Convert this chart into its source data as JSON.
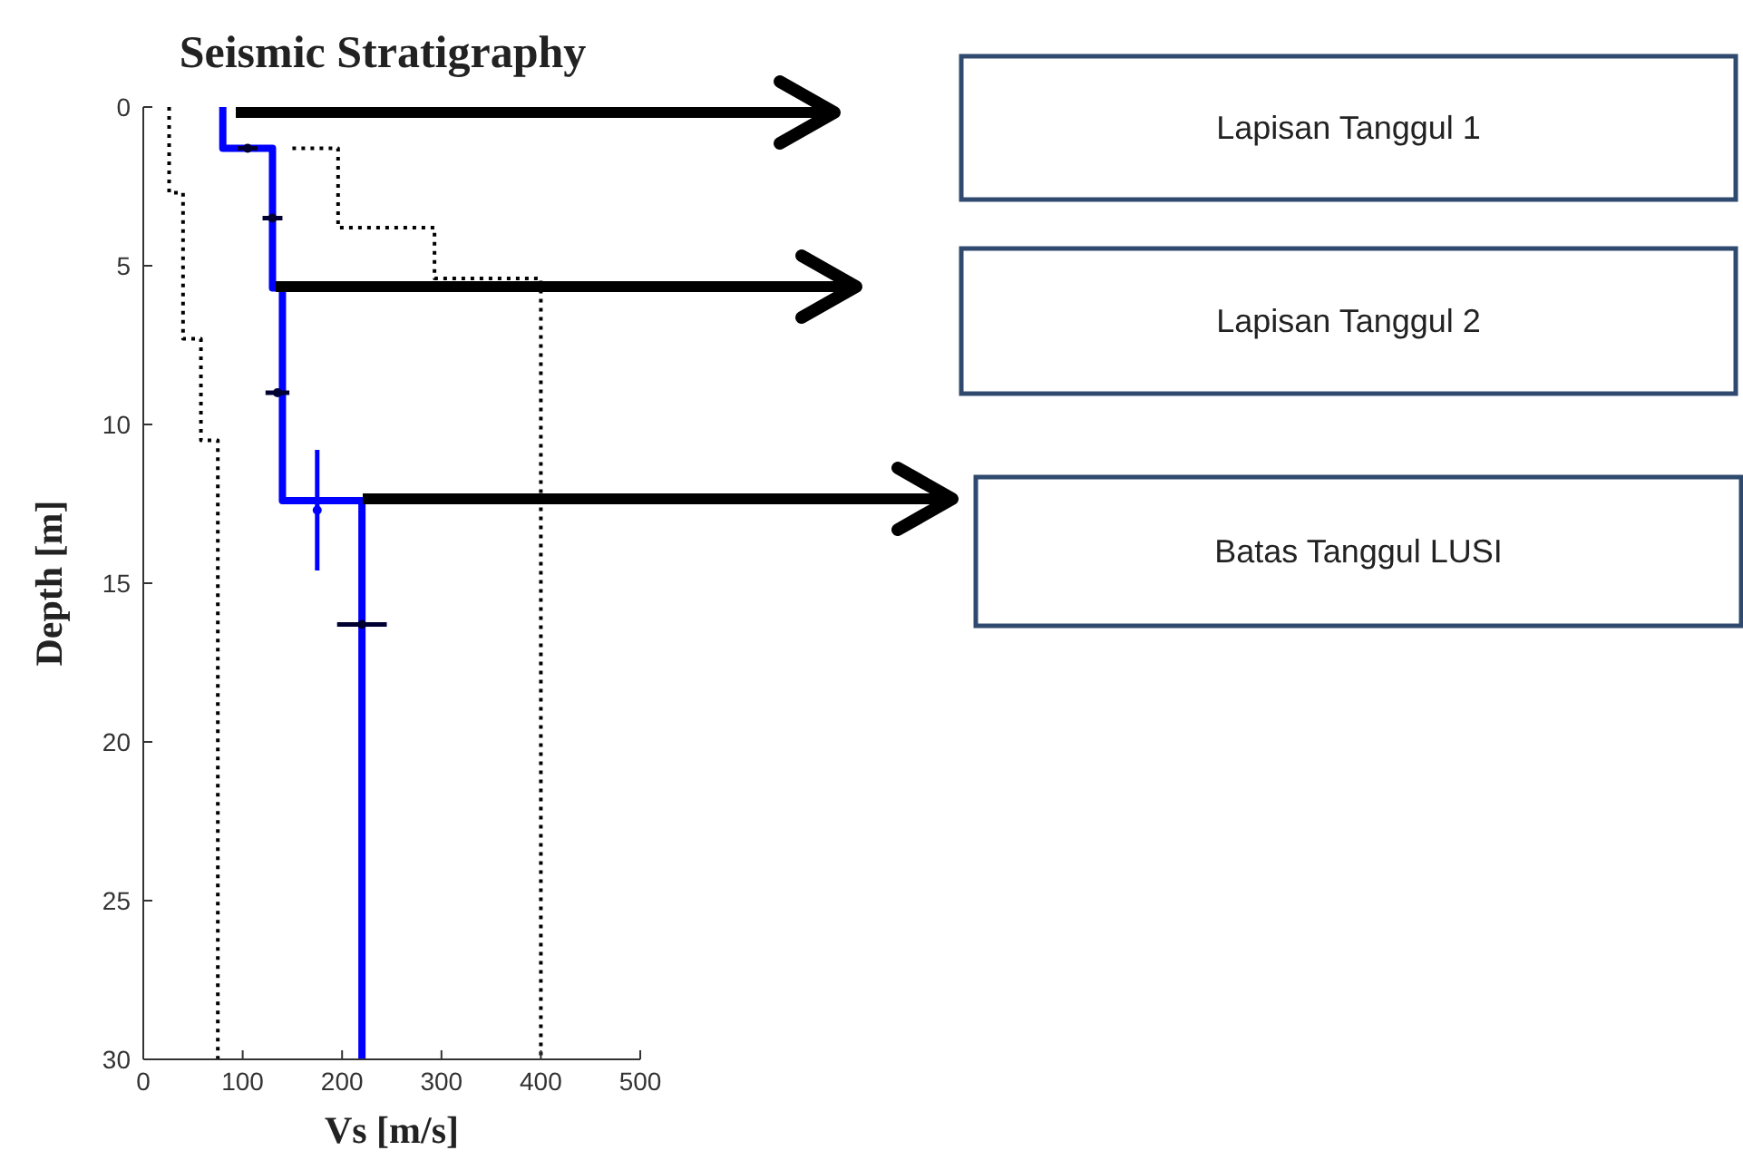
{
  "chart_data": {
    "type": "line",
    "title": "Seismic Stratigraphy",
    "xlabel": "Vs [m/s]",
    "ylabel": "Depth [m]",
    "xlim": [
      0,
      500
    ],
    "xticks": [
      0,
      100,
      200,
      300,
      400,
      500
    ],
    "ylim": [
      30,
      0
    ],
    "yticks": [
      0,
      5,
      10,
      15,
      20,
      25,
      30
    ],
    "series": [
      {
        "color": "#0000ff",
        "line_style": "solid",
        "marker": "none",
        "x": [
          80,
          80,
          130,
          130,
          140,
          140,
          220,
          220
        ],
        "values": [
          0,
          1.3,
          1.3,
          5.7,
          5.7,
          12.4,
          12.4,
          30
        ]
      },
      {
        "color": "#000000",
        "line_style": "dotted",
        "marker": "none",
        "x": [
          26,
          26,
          40,
          40,
          58,
          58,
          75,
          75
        ],
        "values": [
          0,
          2.7,
          2.7,
          7.3,
          7.3,
          10.5,
          10.5,
          30
        ]
      },
      {
        "color": "#000000",
        "line_style": "dotted",
        "marker": "none",
        "x": [
          150,
          196,
          196,
          293,
          293,
          400,
          400
        ],
        "values": [
          1.3,
          1.3,
          3.8,
          3.8,
          5.4,
          5.4,
          30
        ]
      },
      {
        "type": "scatter",
        "color": "#000033",
        "marker": "circle",
        "x": [
          105,
          130,
          135,
          220
        ],
        "values": [
          1.3,
          3.5,
          9,
          16.3
        ],
        "xerrors": [
          10,
          10,
          12,
          25
        ]
      },
      {
        "type": "scatter",
        "color": "#0000ff",
        "marker": "circle",
        "x": [
          175
        ],
        "values": [
          12.7
        ],
        "errors": [
          1.9
        ]
      }
    ],
    "annotations": [
      "Lapisan Tanggul 1",
      "Lapisan Tanggul 2",
      "Batas Tanggul LUSI"
    ]
  }
}
